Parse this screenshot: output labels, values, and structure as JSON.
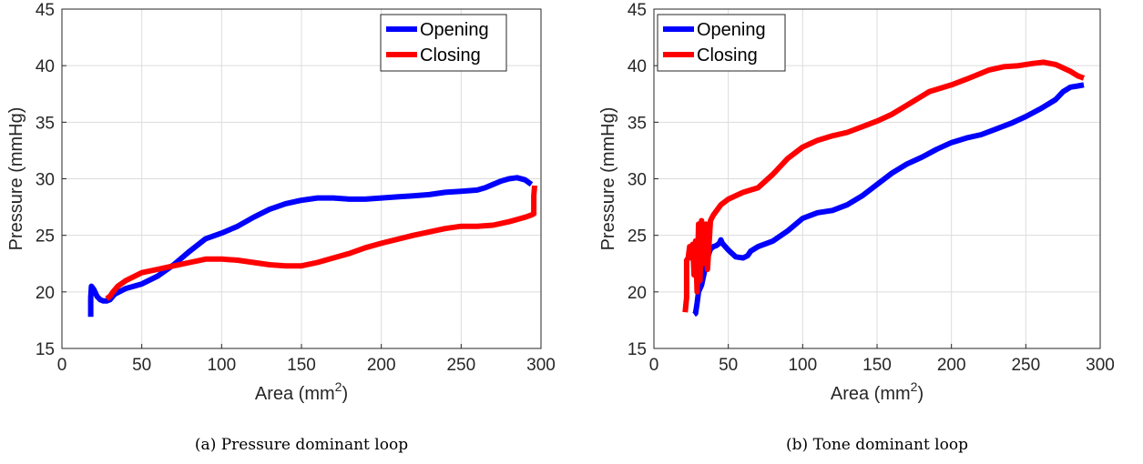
{
  "chart_data": [
    {
      "type": "line",
      "caption": "(a) Pressure dominant loop",
      "xlabel": "Area (mm",
      "xlabel_sup": "2",
      "xlabel_end": ")",
      "ylabel": "Pressure (mmHg)",
      "xlim": [
        0,
        300
      ],
      "ylim": [
        15,
        45
      ],
      "xticks": [
        "0",
        "50",
        "100",
        "150",
        "200",
        "250",
        "300"
      ],
      "yticks": [
        "15",
        "20",
        "25",
        "30",
        "35",
        "40",
        "45"
      ],
      "grid": true,
      "legend_position": "top-right",
      "series": [
        {
          "name": "Opening",
          "color": "#0000ff",
          "x": [
            18,
            18,
            18.5,
            19,
            20,
            21,
            22,
            24,
            26,
            28,
            30,
            33,
            40,
            50,
            60,
            70,
            80,
            90,
            100,
            110,
            120,
            130,
            140,
            150,
            160,
            170,
            180,
            190,
            200,
            210,
            220,
            230,
            240,
            250,
            260,
            265,
            270,
            275,
            280,
            285,
            290,
            294
          ],
          "y": [
            17.8,
            19.5,
            20.5,
            20.4,
            20.2,
            19.9,
            19.6,
            19.3,
            19.2,
            19.2,
            19.3,
            19.8,
            20.3,
            20.7,
            21.4,
            22.4,
            23.6,
            24.7,
            25.2,
            25.8,
            26.6,
            27.3,
            27.8,
            28.1,
            28.3,
            28.3,
            28.2,
            28.2,
            28.3,
            28.4,
            28.5,
            28.6,
            28.8,
            28.9,
            29.0,
            29.2,
            29.5,
            29.8,
            30.0,
            30.1,
            29.9,
            29.5
          ]
        },
        {
          "name": "Closing",
          "color": "#ff0000",
          "x": [
            296,
            295.5,
            295.5,
            295.5,
            294,
            290,
            285,
            280,
            270,
            260,
            250,
            240,
            220,
            200,
            190,
            180,
            170,
            160,
            150,
            140,
            130,
            120,
            110,
            100,
            90,
            80,
            70,
            60,
            50,
            40,
            35,
            32,
            30,
            28
          ],
          "y": [
            29.4,
            28.5,
            27.5,
            26.9,
            26.8,
            26.6,
            26.4,
            26.2,
            25.9,
            25.8,
            25.8,
            25.6,
            25.0,
            24.3,
            23.9,
            23.4,
            23.0,
            22.6,
            22.3,
            22.3,
            22.4,
            22.6,
            22.8,
            22.9,
            22.9,
            22.6,
            22.3,
            22.0,
            21.7,
            21.0,
            20.5,
            20.0,
            19.6,
            19.4
          ]
        }
      ]
    },
    {
      "type": "line",
      "caption": "(b) Tone dominant loop",
      "xlabel": "Area (mm",
      "xlabel_sup": "2",
      "xlabel_end": ")",
      "ylabel": "Pressure (mmHg)",
      "xlim": [
        0,
        300
      ],
      "ylim": [
        15,
        45
      ],
      "xticks": [
        "0",
        "50",
        "100",
        "150",
        "200",
        "250",
        "300"
      ],
      "yticks": [
        "15",
        "20",
        "25",
        "30",
        "35",
        "40",
        "45"
      ],
      "grid": true,
      "legend_position": "top-left",
      "series": [
        {
          "name": "Opening",
          "color": "#0000ff",
          "x": [
            27,
            28,
            29,
            30,
            31,
            32,
            33,
            34,
            35,
            36,
            37,
            38,
            40,
            42,
            44,
            45,
            46,
            48,
            50,
            55,
            60,
            63,
            65,
            70,
            80,
            90,
            100,
            110,
            120,
            130,
            140,
            150,
            160,
            170,
            180,
            190,
            200,
            210,
            220,
            230,
            240,
            250,
            260,
            270,
            275,
            280,
            285,
            289
          ],
          "y": [
            18.0,
            18.1,
            19.0,
            20.0,
            20.3,
            20.6,
            21.2,
            21.8,
            22.5,
            23.0,
            23.4,
            23.8,
            24.0,
            24.1,
            24.3,
            24.6,
            24.3,
            24.0,
            23.7,
            23.1,
            23.0,
            23.2,
            23.6,
            24.0,
            24.5,
            25.4,
            26.5,
            27.0,
            27.2,
            27.7,
            28.5,
            29.5,
            30.5,
            31.3,
            31.9,
            32.6,
            33.2,
            33.6,
            33.9,
            34.4,
            34.9,
            35.5,
            36.2,
            37.0,
            37.7,
            38.1,
            38.2,
            38.3
          ]
        },
        {
          "name": "Closing",
          "color": "#ff0000",
          "x": [
            289,
            285,
            280,
            270,
            262,
            255,
            245,
            235,
            225,
            210,
            200,
            185,
            170,
            160,
            150,
            140,
            130,
            120,
            110,
            100,
            90,
            80,
            70,
            60,
            50,
            45,
            40,
            38,
            36,
            35,
            34,
            33,
            32,
            31,
            30,
            29,
            28,
            27,
            26,
            25,
            24,
            23,
            22,
            22,
            21
          ],
          "y": [
            38.9,
            39.1,
            39.5,
            40.1,
            40.3,
            40.2,
            40.0,
            39.9,
            39.6,
            38.8,
            38.3,
            37.7,
            36.5,
            35.7,
            35.1,
            34.6,
            34.1,
            33.8,
            33.4,
            32.8,
            31.8,
            30.4,
            29.2,
            28.8,
            28.2,
            27.7,
            26.8,
            26.3,
            22.0,
            26.0,
            25.0,
            22.5,
            26.3,
            21.0,
            26.0,
            20.0,
            24.5,
            21.5,
            24.2,
            23.0,
            24.0,
            23.0,
            22.8,
            19.5,
            18.2
          ]
        }
      ]
    }
  ]
}
